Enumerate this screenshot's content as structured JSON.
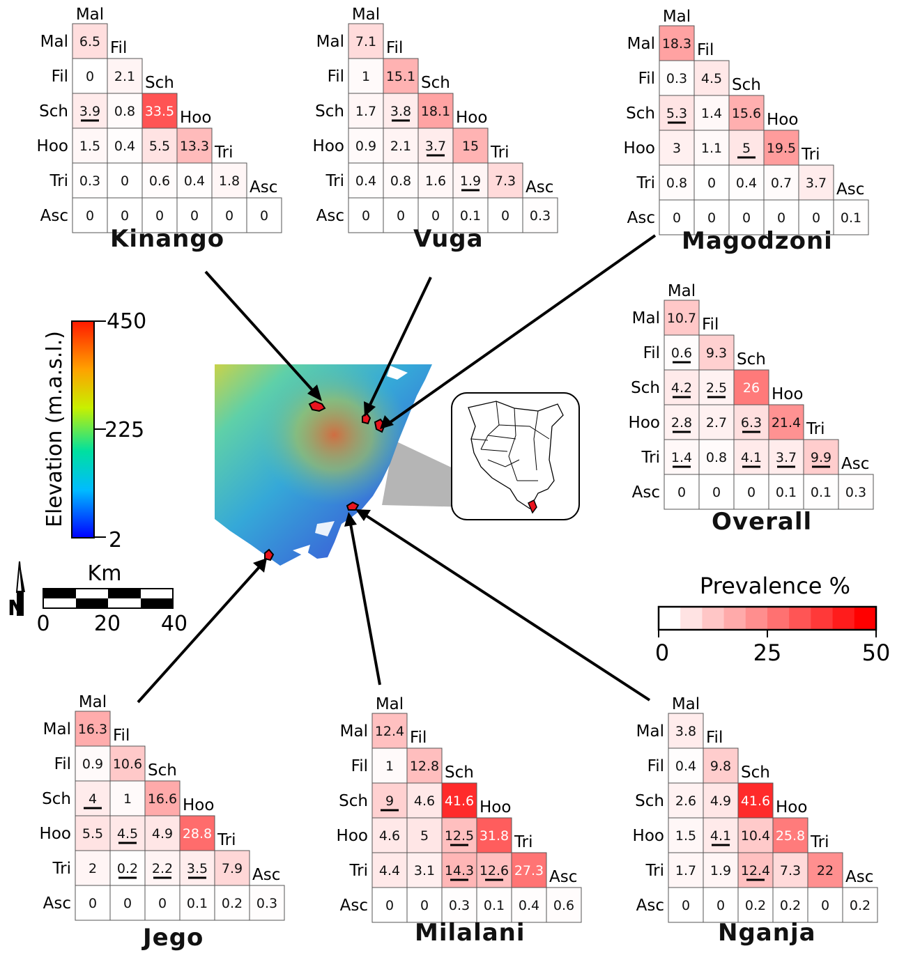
{
  "labels": [
    "Mal",
    "Fil",
    "Sch",
    "Hoo",
    "Tri",
    "Asc"
  ],
  "sites": [
    {
      "name": "Kinango",
      "rows": [
        [
          6.5
        ],
        [
          0,
          2.1
        ],
        [
          3.9,
          0.8,
          33.5
        ],
        [
          1.5,
          0.4,
          5.5,
          13.3
        ],
        [
          0.3,
          0,
          0.6,
          0.4,
          1.8
        ],
        [
          0,
          0,
          0,
          0,
          0,
          0
        ]
      ],
      "underlined": [
        [
          2,
          0
        ]
      ]
    },
    {
      "name": "Vuga",
      "rows": [
        [
          7.1
        ],
        [
          1,
          15.1
        ],
        [
          1.7,
          3.8,
          18.1
        ],
        [
          0.9,
          2.1,
          3.7,
          15
        ],
        [
          0.4,
          0.8,
          1.6,
          1.9,
          7.3
        ],
        [
          0,
          0,
          0,
          0.1,
          0,
          0.3
        ]
      ],
      "underlined": [
        [
          2,
          1
        ],
        [
          3,
          2
        ],
        [
          4,
          3
        ]
      ]
    },
    {
      "name": "Magodzoni",
      "rows": [
        [
          18.3
        ],
        [
          0.3,
          4.5
        ],
        [
          5.3,
          1.4,
          15.6
        ],
        [
          3,
          1.1,
          5,
          19.5
        ],
        [
          0.8,
          0,
          0.4,
          0.7,
          3.7
        ],
        [
          0,
          0,
          0,
          0,
          0,
          0.1
        ]
      ],
      "underlined": [
        [
          2,
          0
        ],
        [
          3,
          2
        ]
      ]
    },
    {
      "name": "Overall",
      "rows": [
        [
          10.7
        ],
        [
          0.6,
          9.3
        ],
        [
          4.2,
          2.5,
          26
        ],
        [
          2.8,
          2.7,
          6.3,
          21.4
        ],
        [
          1.4,
          0.8,
          4.1,
          3.7,
          9.9
        ],
        [
          0,
          0,
          0,
          0.1,
          0.1,
          0.3
        ]
      ],
      "underlined": [
        [
          1,
          0
        ],
        [
          2,
          0
        ],
        [
          2,
          1
        ],
        [
          3,
          0
        ],
        [
          3,
          2
        ],
        [
          4,
          0
        ],
        [
          4,
          2
        ],
        [
          4,
          3
        ],
        [
          4,
          4
        ]
      ]
    },
    {
      "name": "Jego",
      "rows": [
        [
          16.3
        ],
        [
          0.9,
          10.6
        ],
        [
          4,
          1,
          16.6
        ],
        [
          5.5,
          4.5,
          4.9,
          28.8
        ],
        [
          2,
          0.2,
          2.2,
          3.5,
          7.9
        ],
        [
          0,
          0,
          0,
          0.1,
          0.2,
          0.3
        ]
      ],
      "underlined": [
        [
          2,
          0
        ],
        [
          3,
          1
        ],
        [
          4,
          1
        ],
        [
          4,
          2
        ],
        [
          4,
          3
        ]
      ]
    },
    {
      "name": "Milalani",
      "rows": [
        [
          12.4
        ],
        [
          1,
          12.8
        ],
        [
          9,
          4.6,
          41.6
        ],
        [
          4.6,
          5,
          12.5,
          31.8
        ],
        [
          4.4,
          3.1,
          14.3,
          12.6,
          27.3
        ],
        [
          0,
          0,
          0.3,
          0.1,
          0.4,
          0.6
        ]
      ],
      "underlined": [
        [
          2,
          0
        ],
        [
          3,
          2
        ],
        [
          4,
          2
        ],
        [
          4,
          3
        ]
      ]
    },
    {
      "name": "Nganja",
      "rows": [
        [
          3.8
        ],
        [
          0.4,
          9.8
        ],
        [
          2.6,
          4.9,
          41.6
        ],
        [
          1.5,
          4.1,
          10.4,
          25.8
        ],
        [
          1.7,
          1.9,
          12.4,
          7.3,
          22
        ],
        [
          0,
          0,
          0.2,
          0.2,
          0,
          0.2
        ]
      ],
      "underlined": [
        [
          3,
          1
        ],
        [
          4,
          2
        ]
      ]
    }
  ],
  "elevation_legend": {
    "title": "Elevation (m.a.s.l.)",
    "max": "450",
    "mid": "225",
    "min": "2"
  },
  "scale_bar": {
    "unit": "Km",
    "ticks": [
      "0",
      "20",
      "40"
    ]
  },
  "north_arrow": {
    "label": "N"
  },
  "prevalence_legend": {
    "title": "Prevalence %",
    "ticks": [
      "0",
      "25",
      "50"
    ],
    "max": 50,
    "bins": 10
  },
  "colors": {
    "low": "#ffffff",
    "high": "#ff0000",
    "site": "#e8141e"
  }
}
